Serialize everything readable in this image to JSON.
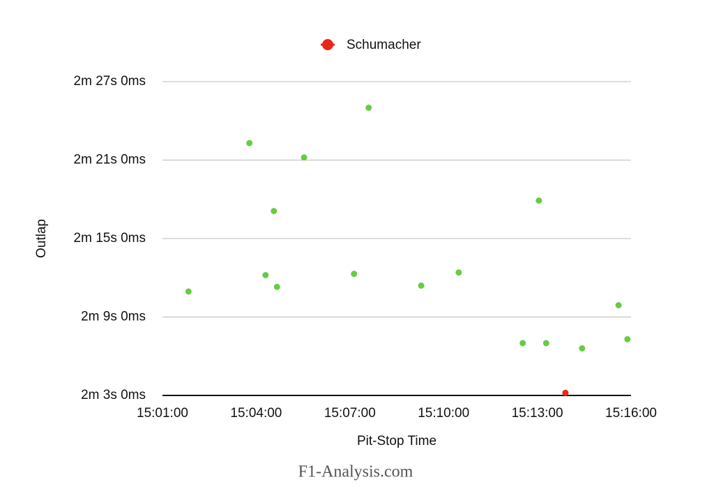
{
  "chart_data": {
    "type": "scatter",
    "x_label": "Pit-Stop Time",
    "y_label": "Outlap",
    "source": "F1-Analysis.com",
    "xlim": [
      54060,
      54960
    ],
    "xticks": [
      {
        "value": 54060,
        "label": "15:01:00"
      },
      {
        "value": 54240,
        "label": "15:04:00"
      },
      {
        "value": 54420,
        "label": "15:07:00"
      },
      {
        "value": 54600,
        "label": "15:10:00"
      },
      {
        "value": 54780,
        "label": "15:13:00"
      },
      {
        "value": 54960,
        "label": "15:16:00"
      }
    ],
    "ylim": [
      123,
      147
    ],
    "yticks": [
      {
        "value": 123,
        "label": "2m 3s 0ms"
      },
      {
        "value": 129,
        "label": "2m 9s 0ms"
      },
      {
        "value": 135,
        "label": "2m 15s 0ms"
      },
      {
        "value": 141,
        "label": "2m 21s 0ms"
      },
      {
        "value": 147,
        "label": "2m 27s 0ms"
      }
    ],
    "grid": true,
    "legend": "top",
    "series": [
      {
        "color": "#66cc44",
        "x": [
          54110,
          54227,
          54258,
          54274,
          54280,
          54332,
          54428,
          54456,
          54557,
          54629,
          54752,
          54783,
          54797,
          54866,
          54936,
          54953
        ],
        "values": [
          130.95,
          142.3,
          132.2,
          137.1,
          131.3,
          141.2,
          132.3,
          145.0,
          131.4,
          132.4,
          127.0,
          137.9,
          127.0,
          126.6,
          129.9,
          127.3
        ]
      },
      {
        "name": "Schumacher",
        "color": "#e8261a",
        "x": [
          54834
        ],
        "values": [
          123.2
        ]
      }
    ]
  }
}
